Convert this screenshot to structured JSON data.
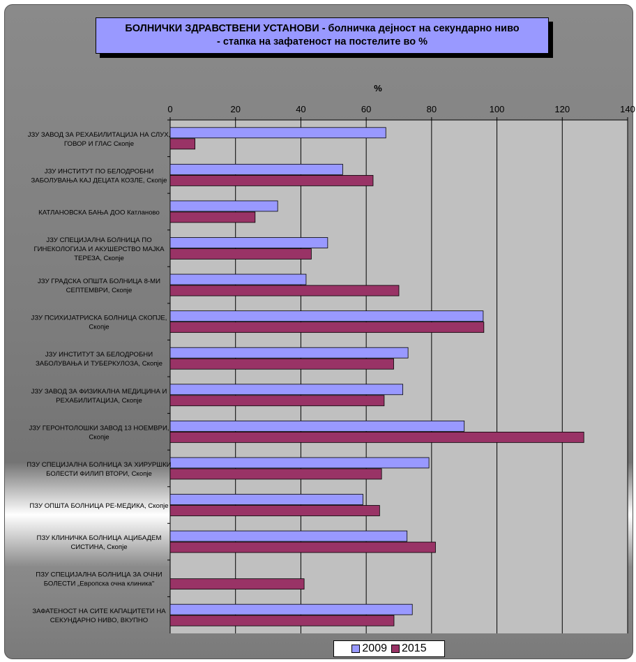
{
  "chart_data": {
    "type": "bar",
    "orientation": "horizontal",
    "title_line1": "БОЛНИЧКИ ЗДРАВСТВЕНИ УСТАНОВИ - болничка дејност на секундарно ниво",
    "title_line2": "- стапка на зафатеност на постелите во %",
    "xlabel": "%",
    "xlim": [
      0,
      140
    ],
    "xticks": [
      "0",
      "20",
      "40",
      "60",
      "80",
      "100",
      "120",
      "140"
    ],
    "xtick_values": [
      0,
      20,
      40,
      60,
      80,
      100,
      120,
      140
    ],
    "grid": true,
    "legend_position": "bottom",
    "categories": [
      [
        "ЈЗУ ЗАВОД ЗА РЕХАБИЛИТАЦИЈА НА СЛУХ,",
        "ГОВОР И ГЛАС Скопје"
      ],
      [
        "ЈЗУ ИНСТИТУТ ПО БЕЛОДРОБНИ",
        "ЗАБОЛУВАЊА КАЈ ДЕЦАТА КОЗЛЕ, Скопје"
      ],
      [
        "КАТЛАНОВСКА БАЊА ДОО Катланово"
      ],
      [
        "ЈЗУ СПЕЦИЈАЛНА БОЛНИЦА ПО",
        "ГИНЕКОЛОГИЈА И АКУШЕРСТВО МАЈКА",
        "ТЕРЕЗА, Скопје"
      ],
      [
        "ЈЗУ ГРАДСКА ОПШТА БОЛНИЦА 8-МИ",
        "СЕПТЕМВРИ, Скопје"
      ],
      [
        "ЈЗУ ПСИХИЈАТРИСКА БОЛНИЦА СКОПЈЕ,",
        "Скопје"
      ],
      [
        "ЈЗУ ИНСТИТУТ ЗА БЕЛОДРОБНИ",
        "ЗАБОЛУВАЊА И ТУБЕРКУЛОЗА, Скопје"
      ],
      [
        "ЈЗУ ЗАВОД ЗА ФИЗИКАЛНА МЕДИЦИНА И",
        "РЕХАБИЛИТАЦИЈА, Скопје"
      ],
      [
        "ЈЗУ ГЕРОНТОЛОШКИ ЗАВОД 13 НОЕМВРИ,",
        "Скопје"
      ],
      [
        "ПЗУ СПЕЦИЈАЛНА БОЛНИЦА ЗА ХИРУРШКИ",
        "БОЛЕСТИ ФИЛИП ВТОРИ, Скопје"
      ],
      [
        "ПЗУ ОПШТА БОЛНИЦА РЕ-МЕДИКА, Скопје"
      ],
      [
        "ПЗУ КЛИНИЧКА БОЛНИЦА АЦИБАДЕМ",
        "СИСТИНА, Скопје"
      ],
      [
        "ПЗУ СПЕЦИЈАЛНА БОЛНИЦА ЗА ОЧНИ",
        "БОЛЕСТИ „Европска очна клиника\""
      ],
      [
        "ЗАФАТЕНОСТ НА СИТЕ КАПАЦИТЕТИ НА",
        "СЕКУНДАРНО НИВО, ВКУПНО"
      ]
    ],
    "series": [
      {
        "name": "2009",
        "color": "#9999ff",
        "values": [
          66.0,
          52.8,
          32.9,
          48.2,
          41.6,
          95.8,
          72.8,
          71.2,
          90.0,
          79.2,
          59.0,
          72.5,
          null,
          74.1
        ]
      },
      {
        "name": "2015",
        "color": "#993366",
        "values": [
          7.6,
          62.1,
          26.0,
          43.2,
          70.0,
          96.0,
          68.4,
          65.5,
          126.6,
          64.7,
          64.1,
          81.2,
          41.0,
          68.5
        ]
      }
    ]
  }
}
